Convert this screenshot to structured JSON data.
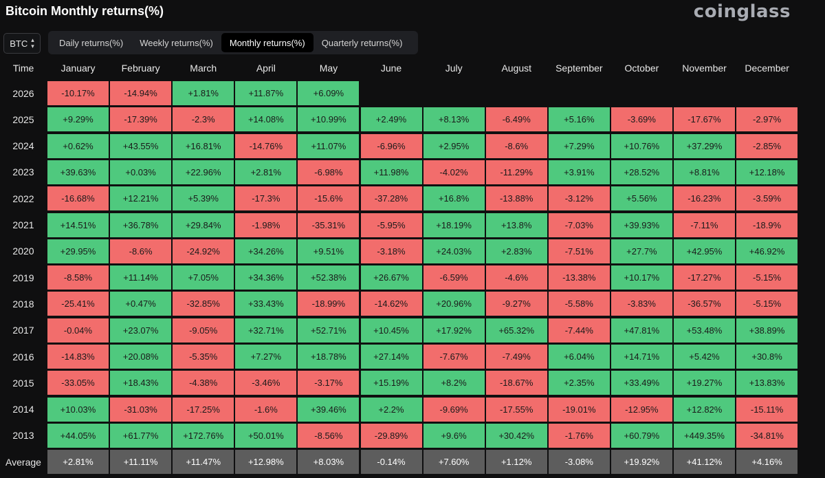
{
  "header": {
    "title": "Bitcoin Monthly returns(%)",
    "logo": "coinglass"
  },
  "asset_select": {
    "value": "BTC"
  },
  "tabs": [
    {
      "label": "Daily returns(%)",
      "active": false
    },
    {
      "label": "Weekly returns(%)",
      "active": false
    },
    {
      "label": "Monthly returns(%)",
      "active": true
    },
    {
      "label": "Quarterly returns(%)",
      "active": false
    }
  ],
  "colors": {
    "positive": "#4fc97e",
    "negative": "#f26d6c",
    "average": "#5d5d5d"
  },
  "chart_data": {
    "type": "heatmap",
    "title": "Bitcoin Monthly returns(%)",
    "corner_label": "Time",
    "columns": [
      "January",
      "February",
      "March",
      "April",
      "May",
      "June",
      "July",
      "August",
      "September",
      "October",
      "November",
      "December"
    ],
    "rows": [
      {
        "label": "2026",
        "values": [
          "-10.17%",
          "-14.94%",
          "+1.81%",
          "+11.87%",
          "+6.09%"
        ]
      },
      {
        "label": "2025",
        "values": [
          "+9.29%",
          "-17.39%",
          "-2.3%",
          "+14.08%",
          "+10.99%",
          "+2.49%",
          "+8.13%",
          "-6.49%",
          "+5.16%",
          "-3.69%",
          "-17.67%",
          "-2.97%"
        ]
      },
      {
        "label": "2024",
        "values": [
          "+0.62%",
          "+43.55%",
          "+16.81%",
          "-14.76%",
          "+11.07%",
          "-6.96%",
          "+2.95%",
          "-8.6%",
          "+7.29%",
          "+10.76%",
          "+37.29%",
          "-2.85%"
        ]
      },
      {
        "label": "2023",
        "values": [
          "+39.63%",
          "+0.03%",
          "+22.96%",
          "+2.81%",
          "-6.98%",
          "+11.98%",
          "-4.02%",
          "-11.29%",
          "+3.91%",
          "+28.52%",
          "+8.81%",
          "+12.18%"
        ]
      },
      {
        "label": "2022",
        "values": [
          "-16.68%",
          "+12.21%",
          "+5.39%",
          "-17.3%",
          "-15.6%",
          "-37.28%",
          "+16.8%",
          "-13.88%",
          "-3.12%",
          "+5.56%",
          "-16.23%",
          "-3.59%"
        ]
      },
      {
        "label": "2021",
        "values": [
          "+14.51%",
          "+36.78%",
          "+29.84%",
          "-1.98%",
          "-35.31%",
          "-5.95%",
          "+18.19%",
          "+13.8%",
          "-7.03%",
          "+39.93%",
          "-7.11%",
          "-18.9%"
        ]
      },
      {
        "label": "2020",
        "values": [
          "+29.95%",
          "-8.6%",
          "-24.92%",
          "+34.26%",
          "+9.51%",
          "-3.18%",
          "+24.03%",
          "+2.83%",
          "-7.51%",
          "+27.7%",
          "+42.95%",
          "+46.92%"
        ]
      },
      {
        "label": "2019",
        "values": [
          "-8.58%",
          "+11.14%",
          "+7.05%",
          "+34.36%",
          "+52.38%",
          "+26.67%",
          "-6.59%",
          "-4.6%",
          "-13.38%",
          "+10.17%",
          "-17.27%",
          "-5.15%"
        ]
      },
      {
        "label": "2018",
        "values": [
          "-25.41%",
          "+0.47%",
          "-32.85%",
          "+33.43%",
          "-18.99%",
          "-14.62%",
          "+20.96%",
          "-9.27%",
          "-5.58%",
          "-3.83%",
          "-36.57%",
          "-5.15%"
        ]
      },
      {
        "label": "2017",
        "values": [
          "-0.04%",
          "+23.07%",
          "-9.05%",
          "+32.71%",
          "+52.71%",
          "+10.45%",
          "+17.92%",
          "+65.32%",
          "-7.44%",
          "+47.81%",
          "+53.48%",
          "+38.89%"
        ]
      },
      {
        "label": "2016",
        "values": [
          "-14.83%",
          "+20.08%",
          "-5.35%",
          "+7.27%",
          "+18.78%",
          "+27.14%",
          "-7.67%",
          "-7.49%",
          "+6.04%",
          "+14.71%",
          "+5.42%",
          "+30.8%"
        ]
      },
      {
        "label": "2015",
        "values": [
          "-33.05%",
          "+18.43%",
          "-4.38%",
          "-3.46%",
          "-3.17%",
          "+15.19%",
          "+8.2%",
          "-18.67%",
          "+2.35%",
          "+33.49%",
          "+19.27%",
          "+13.83%"
        ]
      },
      {
        "label": "2014",
        "values": [
          "+10.03%",
          "-31.03%",
          "-17.25%",
          "-1.6%",
          "+39.46%",
          "+2.2%",
          "-9.69%",
          "-17.55%",
          "-19.01%",
          "-12.95%",
          "+12.82%",
          "-15.11%"
        ]
      },
      {
        "label": "2013",
        "values": [
          "+44.05%",
          "+61.77%",
          "+172.76%",
          "+50.01%",
          "-8.56%",
          "-29.89%",
          "+9.6%",
          "+30.42%",
          "-1.76%",
          "+60.79%",
          "+449.35%",
          "-34.81%"
        ]
      }
    ],
    "average": {
      "label": "Average",
      "values": [
        "+2.81%",
        "+11.11%",
        "+11.47%",
        "+12.98%",
        "+8.03%",
        "-0.14%",
        "+7.60%",
        "+1.12%",
        "-3.08%",
        "+19.92%",
        "+41.12%",
        "+4.16%"
      ]
    }
  }
}
